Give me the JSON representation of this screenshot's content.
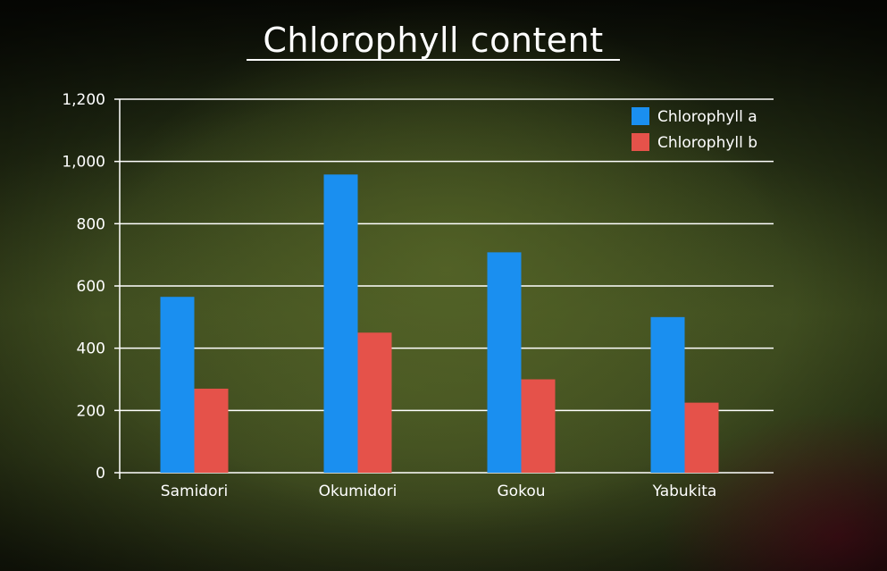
{
  "chart_data": {
    "type": "bar",
    "title": "Chlorophyll content",
    "xlabel": "",
    "ylabel": "",
    "categories": [
      "Samidori",
      "Okumidori",
      "Gokou",
      "Yabukita"
    ],
    "series": [
      {
        "name": "Chlorophyll a",
        "color": "#1a8ff0",
        "values": [
          565,
          958,
          708,
          500
        ]
      },
      {
        "name": "Chlorophyll b",
        "color": "#e5524a",
        "values": [
          270,
          450,
          300,
          225
        ]
      }
    ],
    "ylim": [
      0,
      1200
    ],
    "yticks": [
      0,
      200,
      400,
      600,
      800,
      1000,
      1200
    ],
    "ytick_labels": [
      "0",
      "200",
      "400",
      "600",
      "800",
      "1,000",
      "1,200"
    ],
    "grid": "horizontal",
    "legend_position": "top-right"
  }
}
